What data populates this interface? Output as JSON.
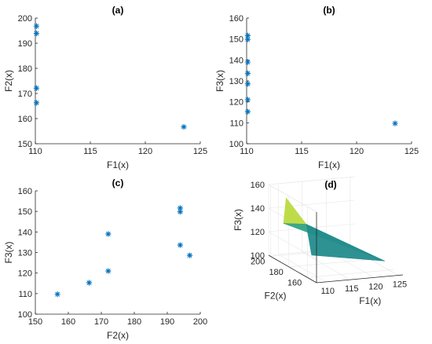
{
  "chart_data": [
    {
      "id": "a",
      "type": "scatter",
      "title": "(a)",
      "xlabel": "F1(x)",
      "ylabel": "F2(x)",
      "xlim": [
        110,
        125
      ],
      "ylim": [
        150,
        200
      ],
      "xticks": [
        110,
        115,
        120,
        125
      ],
      "yticks": [
        150,
        160,
        170,
        180,
        190,
        200
      ],
      "marker": "*",
      "color": "#0072BD",
      "points": [
        {
          "x": 110.1,
          "y": 196.8
        },
        {
          "x": 110.1,
          "y": 193.9
        },
        {
          "x": 110.1,
          "y": 172.1
        },
        {
          "x": 110.1,
          "y": 166.3
        },
        {
          "x": 123.5,
          "y": 156.7
        }
      ]
    },
    {
      "id": "b",
      "type": "scatter",
      "title": "(b)",
      "xlabel": "F1(x)",
      "ylabel": "F3(x)",
      "xlim": [
        110,
        125
      ],
      "ylim": [
        100,
        160
      ],
      "xticks": [
        110,
        115,
        120,
        125
      ],
      "yticks": [
        100,
        110,
        120,
        130,
        140,
        150,
        160
      ],
      "marker": "*",
      "color": "#0072BD",
      "points": [
        {
          "x": 110.1,
          "y": 151.6
        },
        {
          "x": 110.1,
          "y": 149.8
        },
        {
          "x": 110.1,
          "y": 139.0
        },
        {
          "x": 110.1,
          "y": 133.6
        },
        {
          "x": 110.1,
          "y": 128.6
        },
        {
          "x": 110.1,
          "y": 121.0
        },
        {
          "x": 110.1,
          "y": 115.3
        },
        {
          "x": 123.5,
          "y": 109.7
        }
      ]
    },
    {
      "id": "c",
      "type": "scatter",
      "title": "(c)",
      "xlabel": "F2(x)",
      "ylabel": "F3(x)",
      "xlim": [
        150,
        200
      ],
      "ylim": [
        100,
        160
      ],
      "xticks": [
        150,
        160,
        170,
        180,
        190,
        200
      ],
      "yticks": [
        100,
        110,
        120,
        130,
        140,
        150,
        160
      ],
      "marker": "*",
      "color": "#0072BD",
      "points": [
        {
          "x": 156.7,
          "y": 109.7
        },
        {
          "x": 166.3,
          "y": 115.3
        },
        {
          "x": 172.1,
          "y": 121.0
        },
        {
          "x": 172.1,
          "y": 139.0
        },
        {
          "x": 193.9,
          "y": 151.6
        },
        {
          "x": 193.9,
          "y": 149.8
        },
        {
          "x": 193.9,
          "y": 133.6
        },
        {
          "x": 196.8,
          "y": 128.6
        }
      ]
    },
    {
      "id": "d",
      "type": "surface3d",
      "title": "(d)",
      "xlabel": "F1(x)",
      "ylabel": "F2(x)",
      "zlabel": "F3(x)",
      "xlim": [
        108,
        126
      ],
      "ylim": [
        150,
        202
      ],
      "zlim": [
        100,
        160
      ],
      "xticks": [
        110,
        115,
        120,
        125
      ],
      "yticks": [
        160,
        180,
        200
      ],
      "zticks": [
        100,
        120,
        140,
        160
      ],
      "colormap": [
        "#440154",
        "#3b528b",
        "#21918c",
        "#5ec962",
        "#fde725"
      ],
      "vertices": [
        {
          "x": 110.1,
          "y": 196.8,
          "z": 128.6
        },
        {
          "x": 110.1,
          "y": 193.9,
          "z": 151.6
        },
        {
          "x": 110.1,
          "y": 172.1,
          "z": 139.0
        },
        {
          "x": 110.1,
          "y": 166.3,
          "z": 115.3
        },
        {
          "x": 123.5,
          "y": 156.7,
          "z": 109.7
        }
      ],
      "faces": [
        [
          0,
          1,
          2
        ],
        [
          0,
          2,
          4
        ],
        [
          2,
          3,
          4
        ]
      ]
    }
  ]
}
